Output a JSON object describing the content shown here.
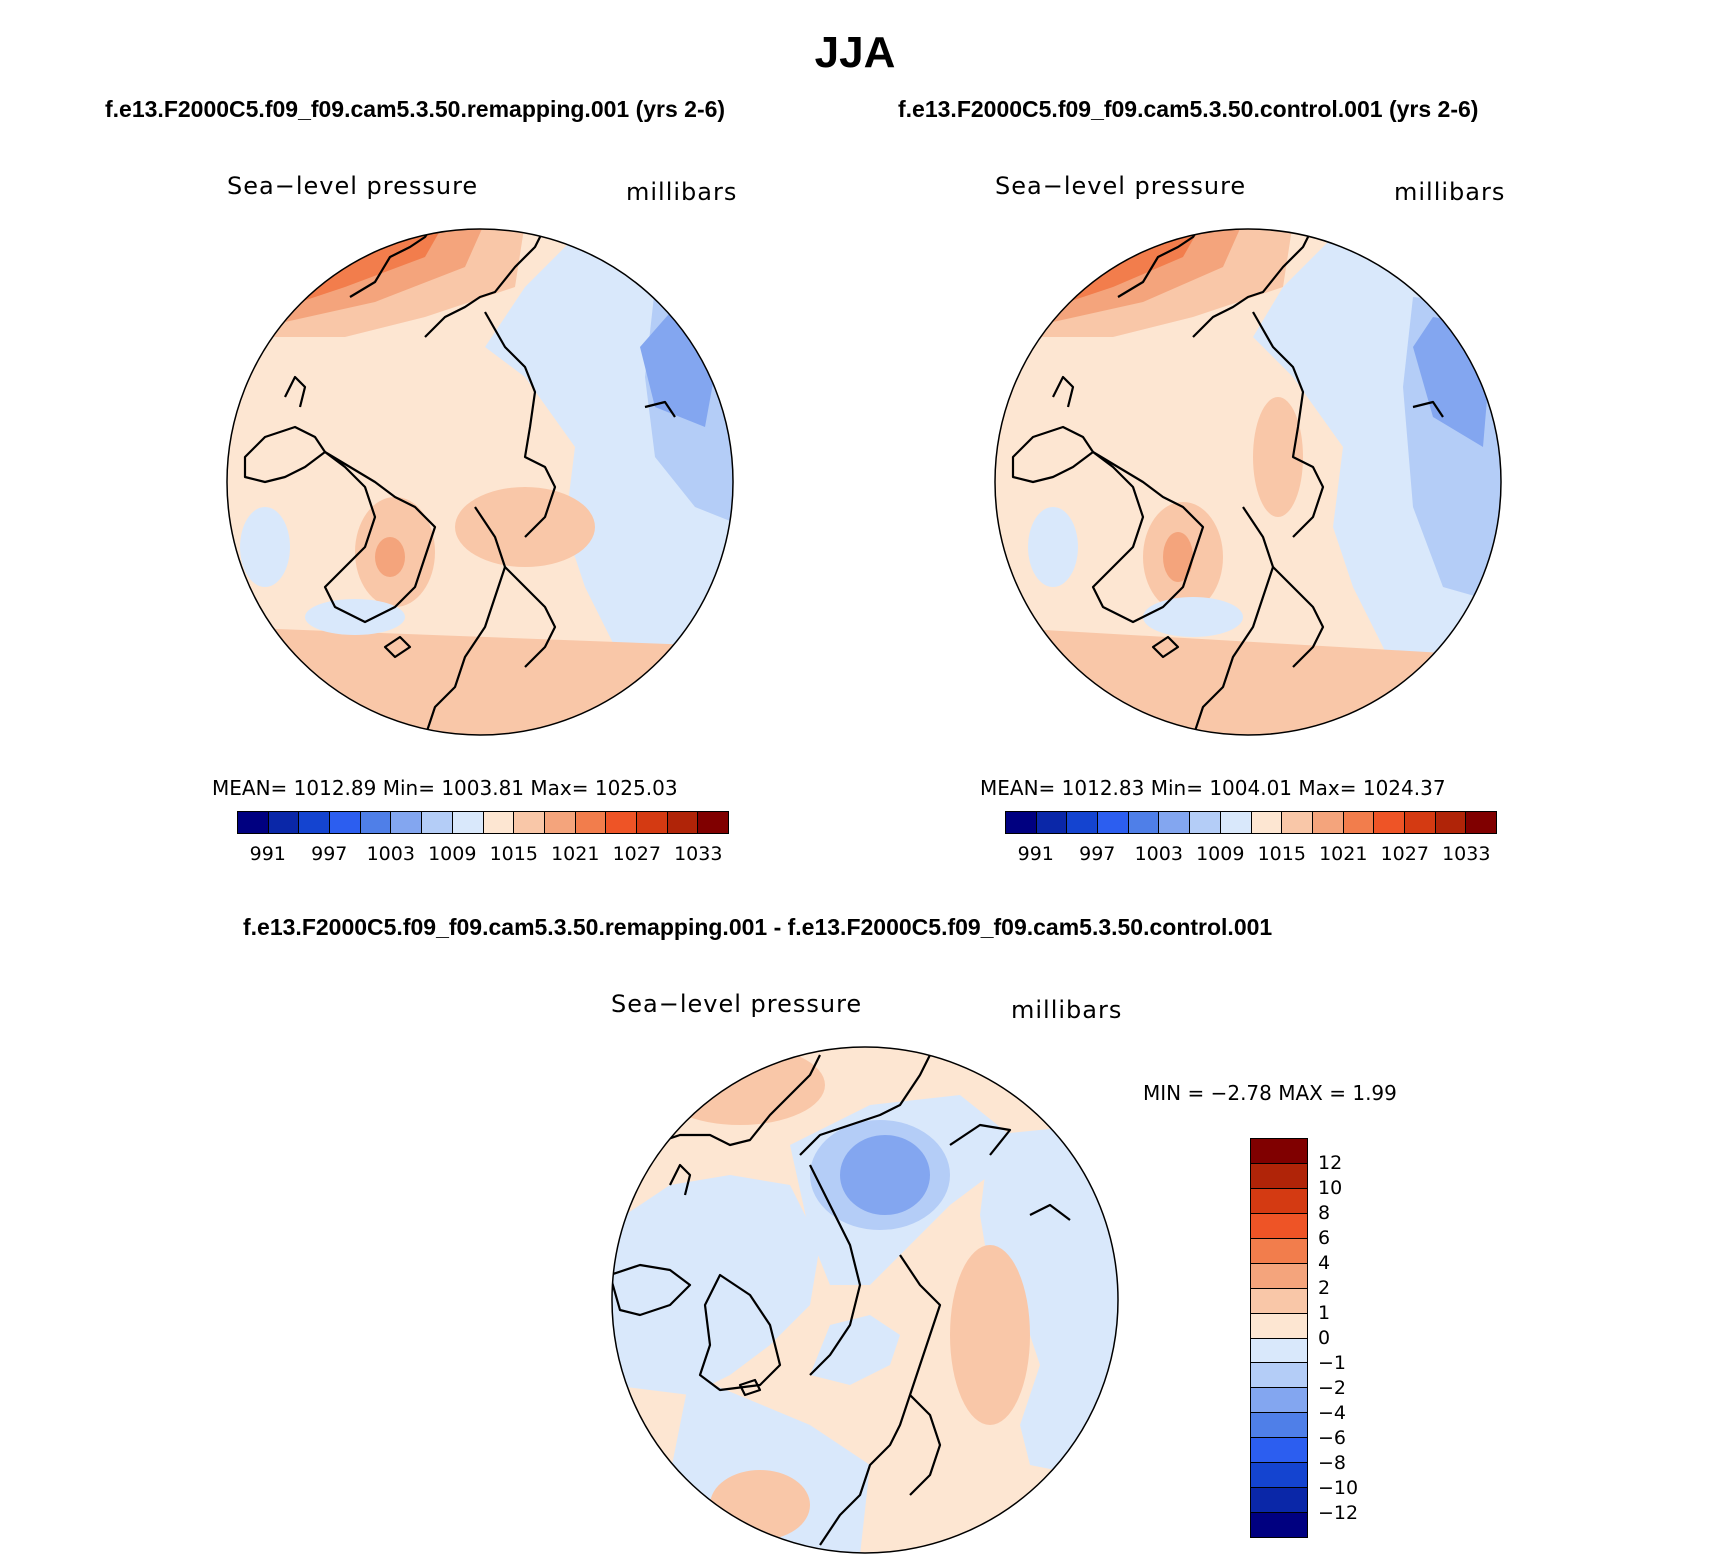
{
  "title": "JJA",
  "panels": [
    {
      "case_title": "f.e13.F2000C5.f09_f09.cam5.3.50.remapping.001 (yrs 2-6)",
      "field_label": "Sea−level pressure",
      "units": "millibars",
      "stats": "MEAN=  1012.89   Min=  1003.81   Max=  1025.03",
      "colorbar": {
        "colors": [
          "#000080",
          "#0a27a8",
          "#1444d0",
          "#2c5ef0",
          "#4f7fe8",
          "#83a6f0",
          "#b4cdf7",
          "#d9e8fb",
          "#fde6d2",
          "#f9c7a8",
          "#f4a47c",
          "#f27d4c",
          "#ee5426",
          "#d43a12",
          "#b02408",
          "#800000"
        ],
        "tick_labels": [
          "991",
          "997",
          "1003",
          "1009",
          "1015",
          "1021",
          "1027",
          "1033"
        ]
      }
    },
    {
      "case_title": "f.e13.F2000C5.f09_f09.cam5.3.50.control.001 (yrs 2-6)",
      "field_label": "Sea−level pressure",
      "units": "millibars",
      "stats": "MEAN=  1012.83   Min=  1004.01   Max=  1024.37",
      "colorbar": {
        "colors": [
          "#000080",
          "#0a27a8",
          "#1444d0",
          "#2c5ef0",
          "#4f7fe8",
          "#83a6f0",
          "#b4cdf7",
          "#d9e8fb",
          "#fde6d2",
          "#f9c7a8",
          "#f4a47c",
          "#f27d4c",
          "#ee5426",
          "#d43a12",
          "#b02408",
          "#800000"
        ],
        "tick_labels": [
          "991",
          "997",
          "1003",
          "1009",
          "1015",
          "1021",
          "1027",
          "1033"
        ]
      }
    }
  ],
  "difference": {
    "case_title": "f.e13.F2000C5.f09_f09.cam5.3.50.remapping.001 - f.e13.F2000C5.f09_f09.cam5.3.50.control.001",
    "field_label": "Sea−level pressure",
    "units": "millibars",
    "stats": "MIN =   −2.78  MAX =    1.99",
    "colorbar": {
      "colors_top_to_bottom": [
        "#800000",
        "#b02408",
        "#d43a12",
        "#ee5426",
        "#f27d4c",
        "#f4a47c",
        "#f9c7a8",
        "#fde6d2",
        "#d9e8fb",
        "#b4cdf7",
        "#83a6f0",
        "#4f7fe8",
        "#2c5ef0",
        "#1444d0",
        "#0a27a8",
        "#000080"
      ],
      "tick_labels": [
        "12",
        "10",
        "8",
        "6",
        "4",
        "2",
        "1",
        "0",
        "−1",
        "−2",
        "−4",
        "−6",
        "−8",
        "−10",
        "−12"
      ]
    }
  }
}
